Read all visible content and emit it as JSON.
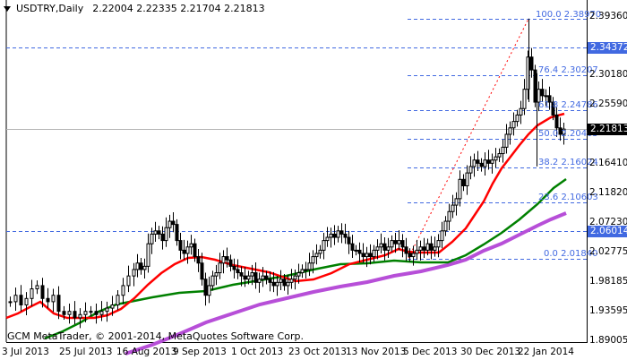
{
  "header": {
    "symbol": "USDTRY,Daily",
    "ohlc": "2.22004 2.22335 2.21704 2.21813"
  },
  "footer": {
    "copyright": "GCM MetaTrader, © 2001-2014, MetaQuotes Software Corp."
  },
  "colors": {
    "fib": "#4169e1",
    "ma_fast": "#ff0000",
    "ma_mid": "#008000",
    "ma_slow": "#b74fd8",
    "trend": "#ff0000",
    "current_price_bg": "#000000",
    "hline_bg": "#4169e1"
  },
  "price_axis": {
    "ticks": [
      "2.39360",
      "2.30180",
      "2.25590",
      "2.16410",
      "2.11820",
      "2.07230",
      "2.02775",
      "1.98185",
      "1.93595",
      "1.89005"
    ],
    "current_price": "2.21813",
    "hline_upper": "2.34372",
    "hline_lower": "2.06014"
  },
  "time_axis": {
    "ticks": [
      "3 Jul 2013",
      "25 Jul 2013",
      "16 Aug 2013",
      "9 Sep 2013",
      "1 Oct 2013",
      "23 Oct 2013",
      "13 Nov 2013",
      "5 Dec 2013",
      "30 Dec 2013",
      "22 Jan 2014"
    ]
  },
  "fibonacci": {
    "levels": [
      {
        "label": "100.0 2.38970"
      },
      {
        "label": "76.4 2.30207"
      },
      {
        "label": "61.8 2.24786"
      },
      {
        "label": "50.0 2.20405"
      },
      {
        "label": "38.2 2.16024"
      },
      {
        "label": "23.6 2.10603"
      },
      {
        "label": "0.0 2.01840"
      }
    ]
  },
  "chart_data": {
    "type": "candlestick",
    "title": "USDTRY,Daily",
    "subtitle": "O 2.22004 H 2.22335 L 2.21704 C 2.21813",
    "xlabel": "",
    "ylabel": "",
    "ylim": [
      1.885,
      2.405
    ],
    "grid": false,
    "x_ticks": [
      "3 Jul 2013",
      "25 Jul 2013",
      "16 Aug 2013",
      "9 Sep 2013",
      "1 Oct 2013",
      "23 Oct 2013",
      "13 Nov 2013",
      "5 Dec 2013",
      "30 Dec 2013",
      "22 Jan 2014"
    ],
    "y_ticks": [
      2.3936,
      2.3018,
      2.2559,
      2.1641,
      2.1182,
      2.0723,
      2.02775,
      1.98185,
      1.93595,
      1.89005
    ],
    "horizontal_lines": [
      2.34372,
      2.06014
    ],
    "current_price": 2.21813,
    "fibonacci_retracement": {
      "from": 2.0184,
      "to": 2.3897,
      "levels": {
        "0.0": 2.0184,
        "23.6": 2.10603,
        "38.2": 2.16024,
        "50.0": 2.20405,
        "61.8": 2.24786,
        "76.4": 2.30207,
        "100.0": 2.3897
      }
    },
    "series": [
      {
        "name": "MA fast (red)",
        "values_approx": {
          "3 Jul 2013": 1.94,
          "25 Jul 2013": 1.955,
          "16 Aug 2013": 1.97,
          "9 Sep 2013": 2.035,
          "1 Oct 2013": 2.03,
          "23 Oct 2013": 2.005,
          "13 Nov 2013": 2.04,
          "5 Dec 2013": 2.025,
          "30 Dec 2013": 2.14,
          "22 Jan 2014": 2.22
        }
      },
      {
        "name": "MA mid (green)",
        "values_approx": {
          "25 Jul 2013": 1.89,
          "16 Aug 2013": 1.925,
          "9 Sep 2013": 1.98,
          "1 Oct 2013": 1.995,
          "23 Oct 2013": 2.005,
          "13 Nov 2013": 2.02,
          "5 Dec 2013": 2.015,
          "30 Dec 2013": 2.06,
          "22 Jan 2014": 2.13
        }
      },
      {
        "name": "MA slow (violet)",
        "values_approx": {
          "16 Aug 2013": 1.89,
          "9 Sep 2013": 1.93,
          "1 Oct 2013": 1.965,
          "23 Oct 2013": 1.985,
          "13 Nov 2013": 2.0,
          "5 Dec 2013": 2.015,
          "30 Dec 2013": 2.045,
          "22 Jan 2014": 2.085
        }
      }
    ],
    "candles_approx": [
      {
        "date": "3 Jul 2013",
        "o": 1.95,
        "h": 1.97,
        "l": 1.93,
        "c": 1.96
      },
      {
        "date": "25 Jul 2013",
        "o": 1.94,
        "h": 1.95,
        "l": 1.91,
        "c": 1.925
      },
      {
        "date": "16 Aug 2013",
        "o": 1.97,
        "h": 2.0,
        "l": 1.96,
        "c": 1.99
      },
      {
        "date": "9 Sep 2013",
        "o": 2.03,
        "h": 2.05,
        "l": 1.94,
        "c": 1.95
      },
      {
        "date": "1 Oct 2013",
        "o": 1.99,
        "h": 2.0,
        "l": 1.97,
        "c": 1.985
      },
      {
        "date": "23 Oct 2013",
        "o": 1.99,
        "h": 2.0,
        "l": 1.98,
        "c": 1.995
      },
      {
        "date": "13 Nov 2013",
        "o": 2.05,
        "h": 2.065,
        "l": 2.02,
        "c": 2.03
      },
      {
        "date": "5 Dec 2013",
        "o": 2.03,
        "h": 2.05,
        "l": 2.018,
        "c": 2.04
      },
      {
        "date": "30 Dec 2013",
        "o": 2.17,
        "h": 2.19,
        "l": 2.15,
        "c": 2.16
      },
      {
        "date": "22 Jan 2014",
        "o": 2.26,
        "h": 2.389,
        "l": 2.25,
        "c": 2.34
      },
      {
        "date": "last",
        "o": 2.22004,
        "h": 2.22335,
        "l": 2.21704,
        "c": 2.21813
      }
    ]
  }
}
